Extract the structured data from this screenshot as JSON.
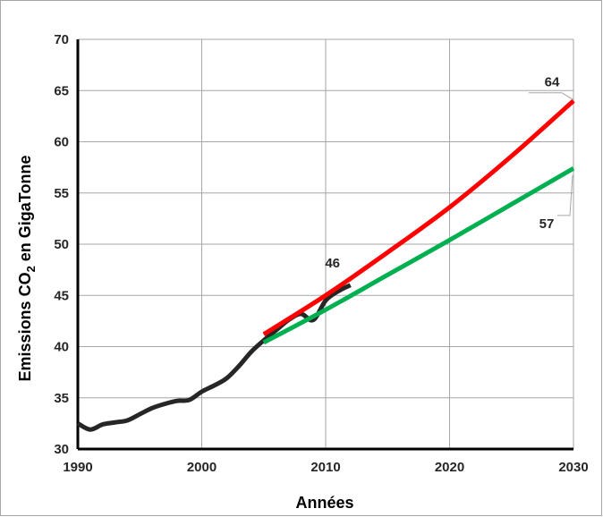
{
  "chart_data": {
    "type": "line",
    "xlabel": "Années",
    "ylabel": "Emissions CO₂ en GigaTonne",
    "ylabel_parts": {
      "before": "Emissions CO",
      "sub": "2",
      "after": " en GigaTonne"
    },
    "xlim": [
      1990,
      2030
    ],
    "ylim": [
      30,
      70
    ],
    "x_ticks": [
      1990,
      2000,
      2010,
      2020,
      2030
    ],
    "y_ticks": [
      30,
      35,
      40,
      45,
      50,
      55,
      60,
      65,
      70
    ],
    "grid": true,
    "series": [
      {
        "key": "historical",
        "color": "#262626",
        "x": [
          1990,
          1991,
          1992,
          1993,
          1994,
          1995,
          1996,
          1997,
          1998,
          1999,
          2000,
          2001,
          2002,
          2003,
          2004,
          2005,
          2006,
          2007,
          2008,
          2009,
          2010,
          2011,
          2012
        ],
        "y": [
          32.5,
          31.9,
          32.4,
          32.6,
          32.8,
          33.4,
          34.0,
          34.4,
          34.7,
          34.8,
          35.6,
          36.2,
          36.9,
          38.1,
          39.5,
          40.6,
          41.6,
          42.6,
          43.2,
          42.6,
          44.5,
          45.4,
          46.0
        ]
      },
      {
        "key": "projection-high",
        "color": "#ff0000",
        "x": [
          2005,
          2010,
          2015,
          2020,
          2025,
          2030
        ],
        "y": [
          41.2,
          45.0,
          49.2,
          53.6,
          58.6,
          64.0
        ]
      },
      {
        "key": "projection-low",
        "color": "#00b050",
        "x": [
          2005,
          2010,
          2015,
          2020,
          2025,
          2030
        ],
        "y": [
          40.4,
          43.6,
          47.0,
          50.4,
          53.9,
          57.4
        ]
      }
    ],
    "annotations": [
      {
        "text": "46",
        "x": 2012,
        "y": 46
      },
      {
        "text": "64",
        "x": 2030,
        "y": 64
      },
      {
        "text": "57",
        "x": 2030,
        "y": 57
      }
    ]
  }
}
